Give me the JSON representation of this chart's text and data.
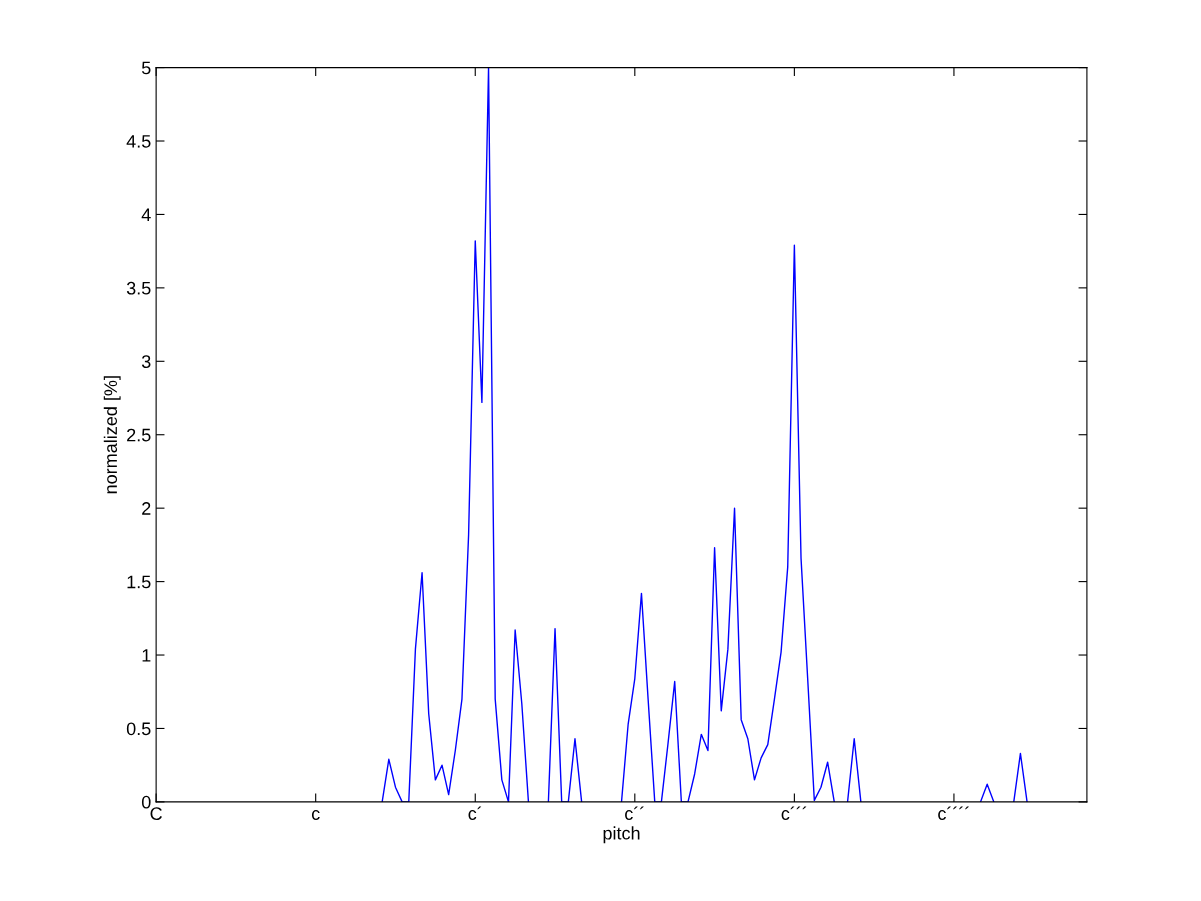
{
  "chart_data": {
    "type": "line",
    "xlabel": "pitch",
    "ylabel": "normalized [%]",
    "categories": [
      "C",
      null,
      null,
      null,
      null,
      null,
      null,
      null,
      null,
      null,
      null,
      null,
      null,
      null,
      null,
      null,
      null,
      null,
      null,
      null,
      null,
      null,
      null,
      null,
      "c",
      null,
      null,
      null,
      null,
      null,
      null,
      null,
      null,
      null,
      null,
      null,
      null,
      null,
      null,
      null,
      null,
      null,
      null,
      null,
      null,
      null,
      null,
      null,
      "c´",
      null,
      null,
      null,
      null,
      null,
      null,
      null,
      null,
      null,
      null,
      null,
      null,
      null,
      null,
      null,
      null,
      null,
      null,
      null,
      null,
      null,
      null,
      null,
      "c´´",
      null,
      null,
      null,
      null,
      null,
      null,
      null,
      null,
      null,
      null,
      null,
      null,
      null,
      null,
      null,
      null,
      null,
      null,
      null,
      null,
      null,
      null,
      null,
      "c´´´",
      null,
      null,
      null,
      null,
      null,
      null,
      null,
      null,
      null,
      null,
      null,
      null,
      null,
      null,
      null,
      null,
      null,
      null,
      null,
      null,
      null,
      null,
      null,
      "c´´´´",
      null,
      null,
      null,
      null,
      null,
      null,
      null,
      null,
      null,
      null,
      null,
      null,
      null,
      null,
      null,
      null,
      null,
      null,
      null,
      null
    ],
    "ylim": [
      0,
      5
    ],
    "yticks": [
      0,
      0.5,
      1,
      1.5,
      2,
      2.5,
      3,
      3.5,
      4,
      4.5,
      5
    ],
    "grid": false,
    "legend": false,
    "marker": "none",
    "line_style": "solid",
    "series": [
      {
        "color": "#0000ff",
        "values": [
          null,
          null,
          null,
          null,
          null,
          null,
          null,
          null,
          null,
          null,
          null,
          null,
          null,
          null,
          null,
          null,
          null,
          null,
          null,
          null,
          null,
          null,
          null,
          null,
          null,
          null,
          null,
          null,
          null,
          null,
          null,
          null,
          null,
          null,
          0,
          0.29,
          0.1,
          0,
          0,
          1.04,
          1.56,
          0.6,
          0.15,
          0.25,
          0.05,
          0.35,
          0.7,
          1.82,
          3.82,
          2.72,
          5,
          0.7,
          0.15,
          0,
          1.17,
          0.67,
          0,
          null,
          null,
          0,
          1.18,
          0,
          0,
          0.43,
          0,
          null,
          null,
          null,
          null,
          null,
          0,
          0.53,
          0.84,
          1.42,
          0.7,
          0,
          0,
          0.4,
          0.82,
          0,
          0,
          0.19,
          0.46,
          0.35,
          1.73,
          0.62,
          1.04,
          2,
          0.56,
          0.43,
          0.15,
          0.3,
          0.39,
          0.7,
          1.02,
          1.6,
          3.79,
          1.66,
          0.84,
          0.01,
          0.1,
          0.27,
          0,
          null,
          0,
          0.43,
          0,
          null,
          null,
          null,
          null,
          null,
          null,
          null,
          null,
          null,
          null,
          null,
          null,
          null,
          null,
          null,
          null,
          null,
          0,
          0.12,
          0,
          null,
          null,
          0,
          0.33,
          0,
          null,
          null,
          null,
          null,
          null,
          null,
          null,
          null,
          null
        ]
      }
    ]
  }
}
